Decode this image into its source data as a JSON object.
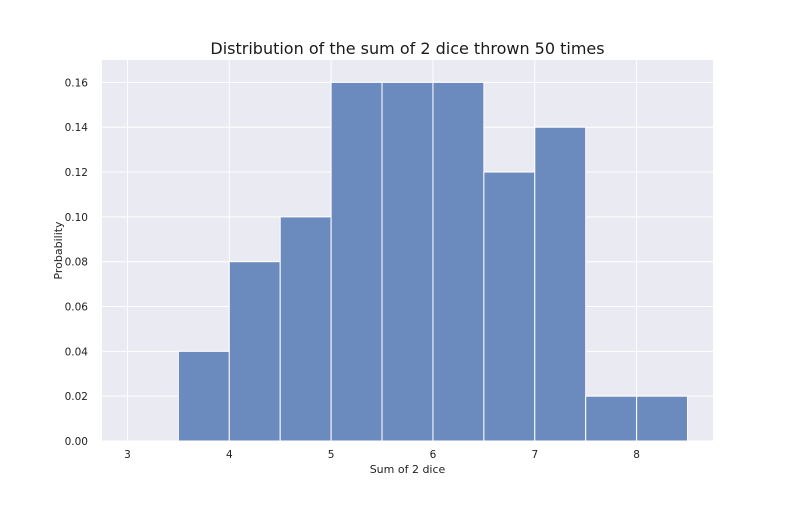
{
  "chart_data": {
    "type": "bar",
    "title": "Distribution of the sum of 2 dice thrown 50 times",
    "xlabel": "Sum of 2 dice",
    "ylabel": "Probability",
    "xlim": [
      2.75,
      8.75
    ],
    "ylim": [
      0,
      0.17
    ],
    "xticks": [
      3,
      4,
      5,
      6,
      7,
      8
    ],
    "yticks": [
      0.0,
      0.02,
      0.04,
      0.06,
      0.08,
      0.1,
      0.12,
      0.14,
      0.16
    ],
    "ytick_format_decimals": 2,
    "bin_width": 0.5,
    "bins": [
      {
        "start": 3.5,
        "end": 4.0,
        "value": 0.04
      },
      {
        "start": 4.0,
        "end": 4.5,
        "value": 0.08
      },
      {
        "start": 4.5,
        "end": 5.0,
        "value": 0.1
      },
      {
        "start": 5.0,
        "end": 5.5,
        "value": 0.16
      },
      {
        "start": 5.5,
        "end": 6.0,
        "value": 0.16
      },
      {
        "start": 6.0,
        "end": 6.5,
        "value": 0.16
      },
      {
        "start": 6.5,
        "end": 7.0,
        "value": 0.12
      },
      {
        "start": 7.0,
        "end": 7.5,
        "value": 0.14
      },
      {
        "start": 7.5,
        "end": 8.0,
        "value": 0.02
      },
      {
        "start": 8.0,
        "end": 8.5,
        "value": 0.02
      }
    ],
    "grid": true,
    "colors": {
      "bar_fill": "#6b8bbf",
      "bar_stroke": "#ffffff",
      "plot_background": "#eaeaf2",
      "grid": "#ffffff",
      "text": "#222222",
      "title": "#1a1a1a"
    }
  }
}
